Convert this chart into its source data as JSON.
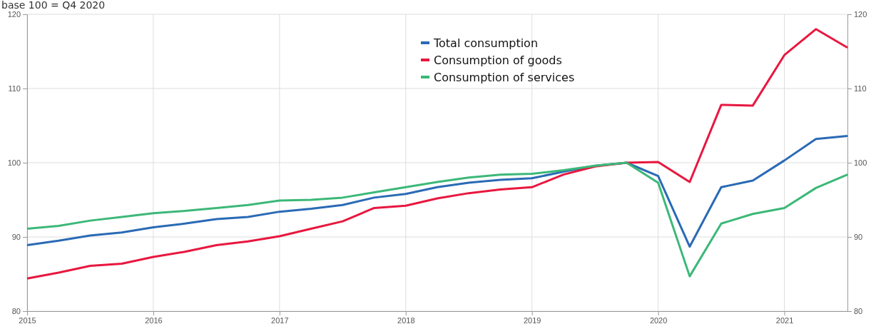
{
  "chart_data": {
    "type": "line",
    "title": "base 100 = Q4 2020",
    "x": [
      2015,
      2015.25,
      2015.5,
      2015.75,
      2016,
      2016.25,
      2016.5,
      2016.75,
      2017,
      2017.25,
      2017.5,
      2017.75,
      2018,
      2018.25,
      2018.5,
      2018.75,
      2019,
      2019.25,
      2019.5,
      2019.75,
      2020,
      2020.25,
      2020.5,
      2020.75,
      2021,
      2021.25,
      2021.5
    ],
    "series": [
      {
        "name": "Total consumption",
        "color": "#2a6ab5",
        "values": [
          88.9,
          89.5,
          90.2,
          90.6,
          91.3,
          91.8,
          92.4,
          92.7,
          93.4,
          93.8,
          94.3,
          95.3,
          95.8,
          96.7,
          97.3,
          97.7,
          97.9,
          98.8,
          99.6,
          100,
          98.2,
          88.7,
          96.7,
          97.6,
          100.3,
          103.2,
          103.6
        ]
      },
      {
        "name": "Consumption of goods",
        "color": "#e8173f",
        "values": [
          84.4,
          85.2,
          86.1,
          86.4,
          87.3,
          88.0,
          88.9,
          89.4,
          90.1,
          91.1,
          92.1,
          93.9,
          94.2,
          95.2,
          95.9,
          96.4,
          96.7,
          98.4,
          99.5,
          100,
          100.1,
          97.4,
          107.8,
          107.7,
          114.5,
          118.0,
          115.5
        ]
      },
      {
        "name": "Consumption of services",
        "color": "#3cb878",
        "values": [
          91.1,
          91.5,
          92.2,
          92.7,
          93.2,
          93.5,
          93.9,
          94.3,
          94.9,
          95.0,
          95.3,
          96.0,
          96.7,
          97.4,
          98.0,
          98.4,
          98.5,
          99.0,
          99.6,
          100,
          97.3,
          84.7,
          91.8,
          93.1,
          93.9,
          96.6,
          98.4
        ]
      }
    ],
    "xlim": [
      2015,
      2021.5
    ],
    "xticks": [
      2015,
      2016,
      2017,
      2018,
      2019,
      2020,
      2021
    ],
    "ylim": [
      80,
      120
    ],
    "yticks": [
      80,
      90,
      100,
      110,
      120
    ],
    "y2lim": [
      80,
      120
    ],
    "y2ticks": [
      80,
      90,
      100,
      110,
      120
    ],
    "grid": true,
    "legend": "top",
    "marker": "none",
    "line_style": "solid"
  }
}
